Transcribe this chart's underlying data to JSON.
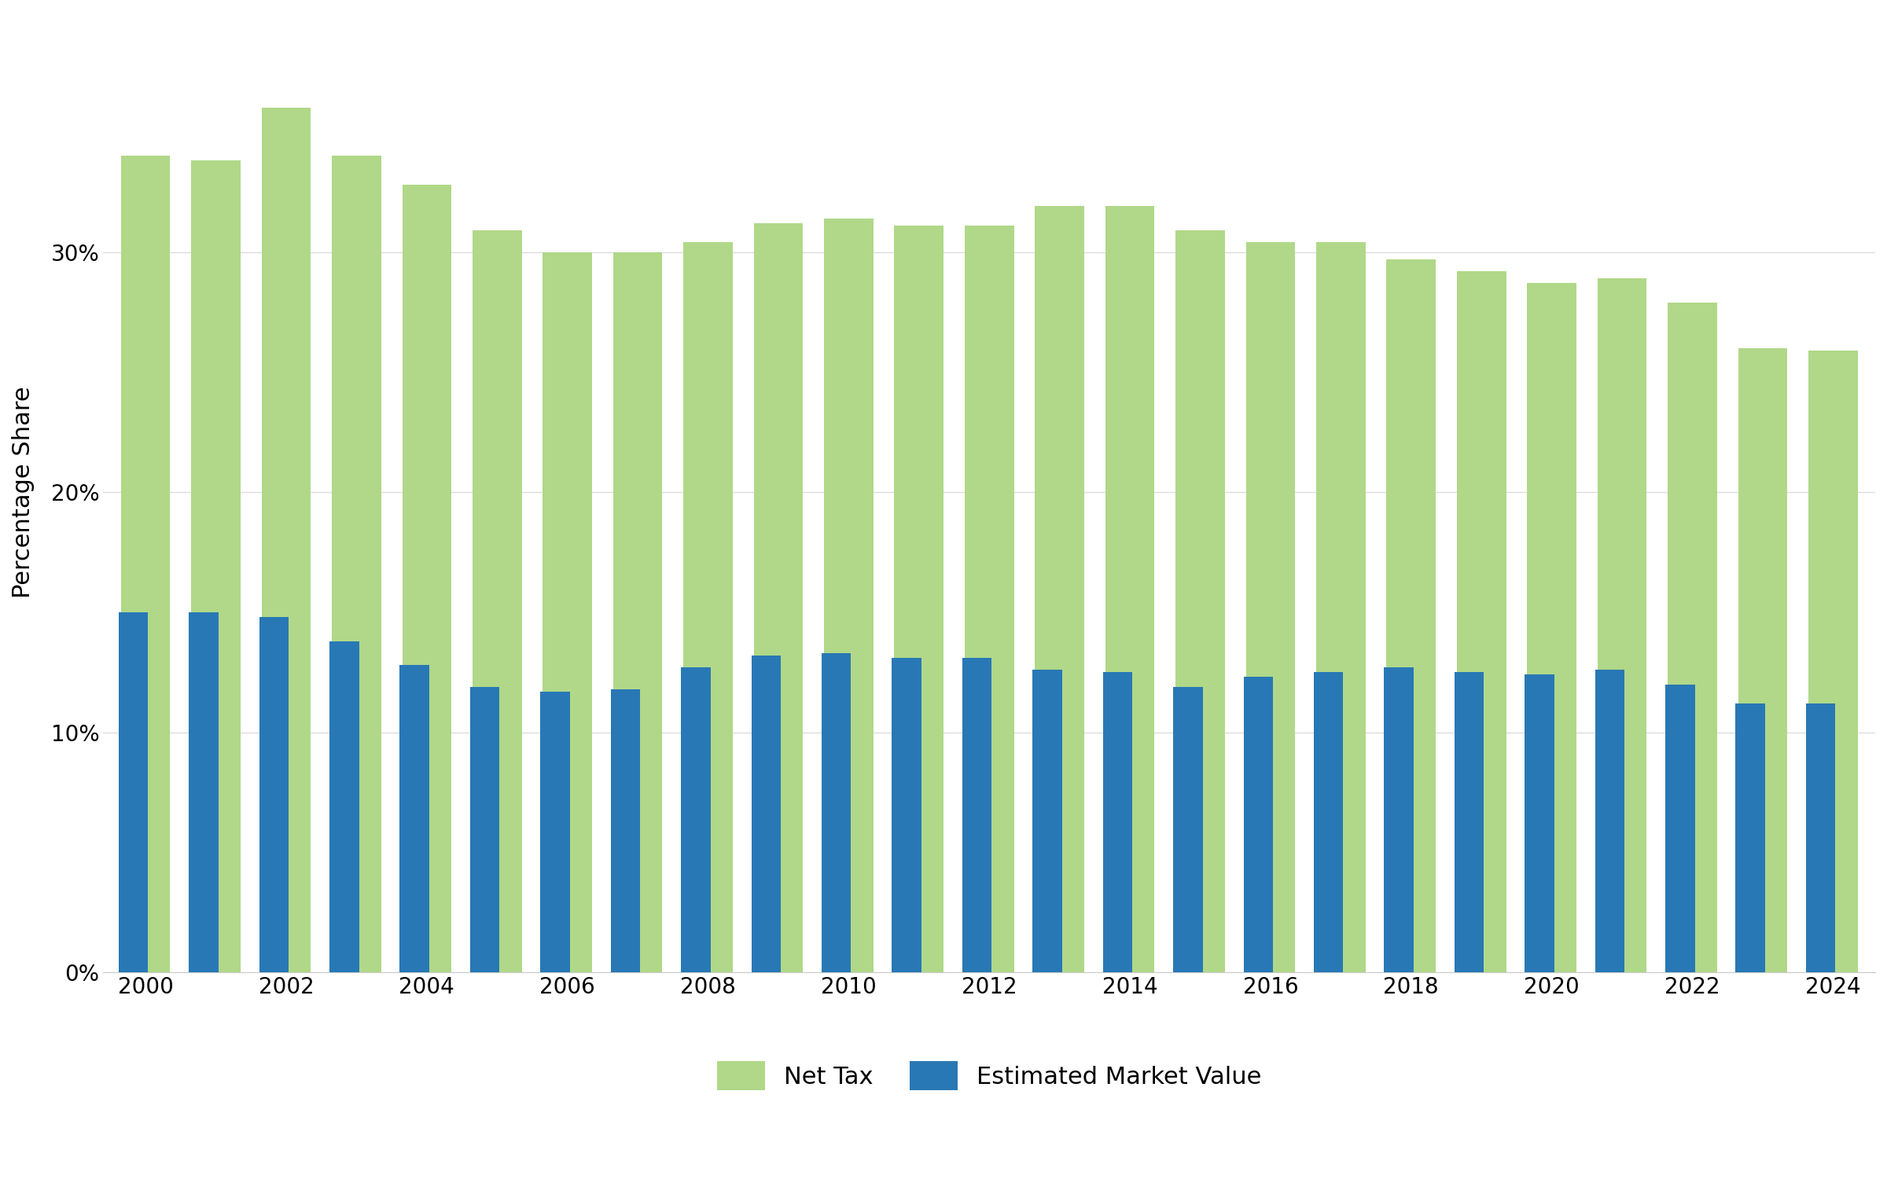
{
  "years": [
    2000,
    2001,
    2002,
    2003,
    2004,
    2005,
    2006,
    2007,
    2008,
    2009,
    2010,
    2011,
    2012,
    2013,
    2014,
    2015,
    2016,
    2017,
    2018,
    2019,
    2020,
    2021,
    2022,
    2023,
    2024
  ],
  "emv": [
    15.0,
    15.0,
    14.8,
    13.8,
    12.8,
    11.9,
    11.7,
    11.8,
    12.7,
    13.2,
    13.3,
    13.1,
    13.1,
    12.6,
    12.5,
    11.9,
    12.3,
    12.5,
    12.7,
    12.5,
    12.4,
    12.6,
    12.0,
    11.2,
    11.2
  ],
  "net_tax": [
    34.0,
    33.8,
    36.0,
    34.0,
    32.8,
    30.9,
    30.0,
    30.0,
    30.4,
    31.2,
    31.4,
    31.1,
    31.1,
    31.9,
    31.9,
    30.9,
    30.4,
    30.4,
    29.7,
    29.2,
    28.7,
    28.9,
    27.9,
    26.0,
    25.9
  ],
  "emv_color": "#2878b5",
  "net_tax_color": "#b0d888",
  "background_color": "#ffffff",
  "ylabel": "Percentage Share",
  "ylim": [
    0,
    40
  ],
  "yticks": [
    0,
    10,
    20,
    30
  ],
  "ytick_labels": [
    "0%",
    "10%",
    "20%",
    "30%"
  ],
  "legend_labels": [
    "Estimated Market Value",
    "Net Tax"
  ],
  "bar_width": 0.7,
  "figsize": [
    24,
    15
  ]
}
